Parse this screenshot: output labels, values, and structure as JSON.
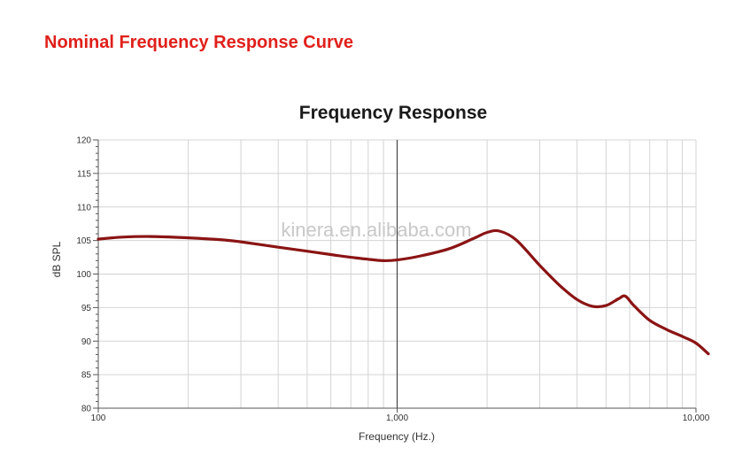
{
  "page": {
    "heading": "Nominal Frequency Response Curve",
    "watermark": "kinera.en.alibaba.com"
  },
  "colors": {
    "heading": "#e0201b",
    "curve": "#8b1414",
    "grid": "#d4d4d4",
    "axis": "#555555"
  },
  "chart_data": {
    "type": "line",
    "title": "Frequency Response",
    "xlabel": "Frequency (Hz.)",
    "ylabel": "dB SPL",
    "xscale": "log",
    "xlim": [
      100,
      10000
    ],
    "ylim": [
      80,
      120
    ],
    "grid": true,
    "xtick_labels": [
      "100",
      "1,000",
      "10,000"
    ],
    "ytick_labels": [
      "80",
      "85",
      "90",
      "95",
      "100",
      "105",
      "110",
      "115",
      "120"
    ],
    "series": [
      {
        "x": [
          100,
          120,
          150,
          200,
          260,
          300,
          400,
          500,
          600,
          700,
          800,
          900,
          1000,
          1200,
          1500,
          1800,
          2000,
          2200,
          2500,
          3000,
          3500,
          4000,
          4500,
          5000,
          5500,
          5800,
          6200,
          7000,
          8000,
          9000,
          10000,
          11000
        ],
        "y": [
          105.2,
          105.5,
          105.6,
          105.4,
          105.1,
          104.8,
          104.0,
          103.4,
          102.9,
          102.5,
          102.2,
          102.0,
          102.1,
          102.7,
          103.8,
          105.3,
          106.2,
          106.4,
          105.1,
          101.3,
          98.3,
          96.2,
          95.2,
          95.3,
          96.3,
          96.7,
          95.3,
          93.1,
          91.7,
          90.7,
          89.7,
          88.1
        ]
      }
    ]
  }
}
